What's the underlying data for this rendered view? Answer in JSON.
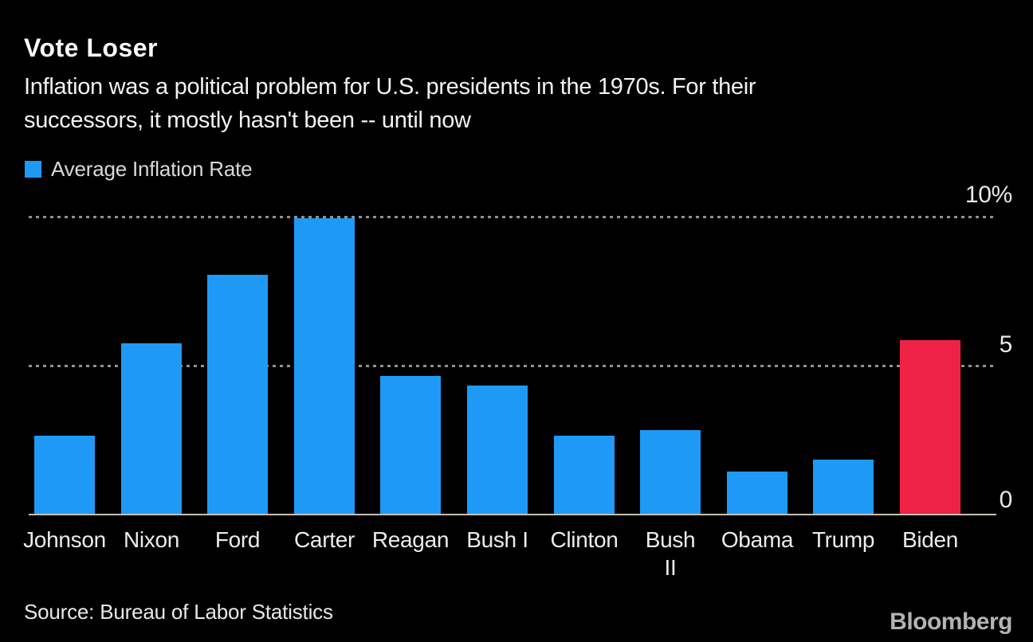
{
  "header": {
    "title": "Vote Loser",
    "subtitle_lines": [
      "Inflation was a political problem for U.S. presidents in the 1970s. For their",
      "successors, it mostly hasn't been -- until now"
    ]
  },
  "legend": {
    "label": "Average Inflation Rate",
    "swatch_color": "#1e9af6"
  },
  "chart_data": {
    "type": "bar",
    "title": "Vote Loser",
    "series_name": "Average Inflation Rate",
    "categories": [
      "Johnson",
      "Nixon",
      "Ford",
      "Carter",
      "Reagan",
      "Bush I",
      "Clinton",
      "Bush II",
      "Obama",
      "Trump",
      "Biden"
    ],
    "tick_label_lines": [
      [
        "Johnson"
      ],
      [
        "Nixon"
      ],
      [
        "Ford"
      ],
      [
        "Carter"
      ],
      [
        "Reagan"
      ],
      [
        "Bush I"
      ],
      [
        "Clinton"
      ],
      [
        "Bush",
        "II"
      ],
      [
        "Obama"
      ],
      [
        "Trump"
      ],
      [
        "Biden"
      ]
    ],
    "values": [
      2.6,
      5.7,
      8.0,
      9.9,
      4.6,
      4.3,
      2.6,
      2.8,
      1.4,
      1.8,
      5.8
    ],
    "xlabel": "",
    "ylabel": "",
    "ylim": [
      0,
      10
    ],
    "yticks": [
      {
        "value": 10,
        "label": "10%"
      },
      {
        "value": 5,
        "label": "5"
      },
      {
        "value": 0,
        "label": "0"
      }
    ],
    "grid": "horizontal dotted lines at 5 and 10, solid baseline at 0",
    "legend_position": "top-left",
    "bar_colors": {
      "default": "#1e9af6",
      "highlight": "#ed2245"
    },
    "highlight_category": "Biden"
  },
  "footer": {
    "source": "Source: Bureau of Labor Statistics",
    "brand": "Bloomberg"
  },
  "colors": {
    "background": "#000000",
    "bar_blue": "#1e9af6",
    "bar_red": "#ed2245",
    "grid_dots": "#94908a",
    "axis_line": "#c6c0b5",
    "text_primary": "#ffffff",
    "text_secondary": "#e8e8e8"
  }
}
